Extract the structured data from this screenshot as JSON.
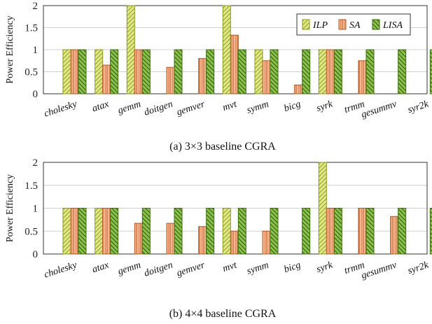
{
  "series_colors": {
    "ILP": {
      "fill": "#dfe88a",
      "stroke": "#8a9a1e",
      "hatch": "#9aa31c"
    },
    "SA": {
      "fill": "#f5b58e",
      "stroke": "#b05a22",
      "hatch": "#b0582a"
    },
    "LISA": {
      "fill": "#8cc24a",
      "stroke": "#3f6f12",
      "hatch": "#2f5a0a"
    }
  },
  "chart_data": [
    {
      "type": "bar",
      "caption": "(a)  3×3 baseline CGRA",
      "ylabel": "Power Efficiency",
      "ylim": [
        0,
        2
      ],
      "yticks": [
        "0",
        "0.5",
        "1",
        "1.5",
        "2"
      ],
      "categories": [
        "cholesky",
        "atax",
        "gemm",
        "doitgen",
        "gemver",
        "mvt",
        "symm",
        "bicg",
        "syrk",
        "trmm",
        "gesummv",
        "syr2k"
      ],
      "series": [
        {
          "name": "ILP",
          "values": [
            1,
            1,
            2,
            null,
            null,
            2,
            1,
            null,
            1,
            null,
            null,
            null
          ]
        },
        {
          "name": "SA",
          "values": [
            1,
            0.65,
            1,
            0.6,
            0.8,
            1.33,
            0.75,
            0.2,
            1,
            0.75,
            null,
            null
          ]
        },
        {
          "name": "LISA",
          "values": [
            1,
            1,
            1,
            1,
            1,
            1,
            1,
            1,
            1,
            1,
            1,
            1
          ]
        }
      ],
      "legend": [
        "ILP",
        "SA",
        "LISA"
      ],
      "legend_position": "top-right"
    },
    {
      "type": "bar",
      "caption": "(b) 4×4 baseline CGRA",
      "ylabel": "Power Efficiency",
      "ylim": [
        0,
        2
      ],
      "yticks": [
        "0",
        "0.5",
        "1",
        "1.5",
        "2"
      ],
      "categories": [
        "cholesky",
        "atax",
        "gemm",
        "doitgen",
        "gemver",
        "mvt",
        "symm",
        "bicg",
        "syrk",
        "trmm",
        "gesummv",
        "syr2k"
      ],
      "series": [
        {
          "name": "ILP",
          "values": [
            1,
            1,
            null,
            null,
            null,
            1,
            null,
            null,
            2,
            null,
            null,
            null
          ]
        },
        {
          "name": "SA",
          "values": [
            1,
            1,
            0.67,
            0.67,
            0.6,
            0.5,
            0.5,
            null,
            1,
            1,
            0.82,
            null
          ]
        },
        {
          "name": "LISA",
          "values": [
            1,
            1,
            1,
            1,
            1,
            1,
            1,
            1,
            1,
            1,
            1,
            1
          ]
        }
      ]
    }
  ]
}
